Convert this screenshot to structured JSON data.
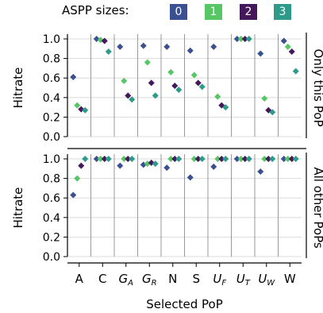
{
  "legend": {
    "title": "ASPP sizes:",
    "items": [
      {
        "label": "0",
        "color": "#3b5091"
      },
      {
        "label": "1",
        "color": "#57c766"
      },
      {
        "label": "2",
        "color": "#44185b"
      },
      {
        "label": "3",
        "color": "#2d9a8a"
      }
    ]
  },
  "chart_data": [
    {
      "type": "scatter",
      "panel_label": "Only this PoP",
      "ylabel": "Hitrate",
      "ylim": [
        0,
        1
      ],
      "yticks": [
        "0.0",
        "0.2",
        "0.4",
        "0.6",
        "0.8",
        "1.0"
      ],
      "categories": [
        "A",
        "C",
        "G_A",
        "G_R",
        "N",
        "S",
        "U_F",
        "U_T",
        "U_W",
        "W"
      ],
      "series": [
        {
          "name": "0",
          "color": "#3b5091",
          "values": [
            0.61,
            1.0,
            0.92,
            0.93,
            0.92,
            0.88,
            0.92,
            1.0,
            0.85,
            0.98
          ]
        },
        {
          "name": "1",
          "color": "#57c766",
          "values": [
            0.32,
            0.99,
            0.57,
            0.76,
            0.66,
            0.63,
            0.41,
            1.0,
            0.39,
            0.92
          ]
        },
        {
          "name": "2",
          "color": "#44185b",
          "values": [
            0.28,
            0.98,
            0.42,
            0.55,
            0.52,
            0.55,
            0.32,
            1.0,
            0.27,
            0.87
          ]
        },
        {
          "name": "3",
          "color": "#2d9a8a",
          "values": [
            0.27,
            0.87,
            0.38,
            0.42,
            0.48,
            0.51,
            0.3,
            1.0,
            0.25,
            0.67
          ]
        }
      ],
      "grid": true
    },
    {
      "type": "scatter",
      "panel_label": "All other PoPs",
      "ylabel": "Hitrate",
      "xlabel": "Selected PoP",
      "ylim": [
        0,
        1
      ],
      "yticks": [
        "0.0",
        "0.2",
        "0.4",
        "0.6",
        "0.8",
        "1.0"
      ],
      "categories": [
        "A",
        "C",
        "G_A",
        "G_R",
        "N",
        "S",
        "U_F",
        "U_T",
        "U_W",
        "W"
      ],
      "series": [
        {
          "name": "0",
          "color": "#3b5091",
          "values": [
            0.63,
            1.0,
            0.93,
            0.94,
            0.91,
            0.81,
            0.92,
            1.0,
            0.87,
            1.0
          ]
        },
        {
          "name": "1",
          "color": "#57c766",
          "values": [
            0.8,
            1.0,
            1.0,
            0.95,
            1.0,
            1.0,
            1.0,
            1.0,
            1.0,
            1.0
          ]
        },
        {
          "name": "2",
          "color": "#44185b",
          "values": [
            0.93,
            1.0,
            1.0,
            0.96,
            1.0,
            1.0,
            1.0,
            1.0,
            1.0,
            1.0
          ]
        },
        {
          "name": "3",
          "color": "#2d9a8a",
          "values": [
            1.0,
            1.0,
            1.0,
            0.95,
            1.0,
            1.0,
            1.0,
            1.0,
            1.0,
            1.0
          ]
        }
      ],
      "grid": true
    }
  ]
}
